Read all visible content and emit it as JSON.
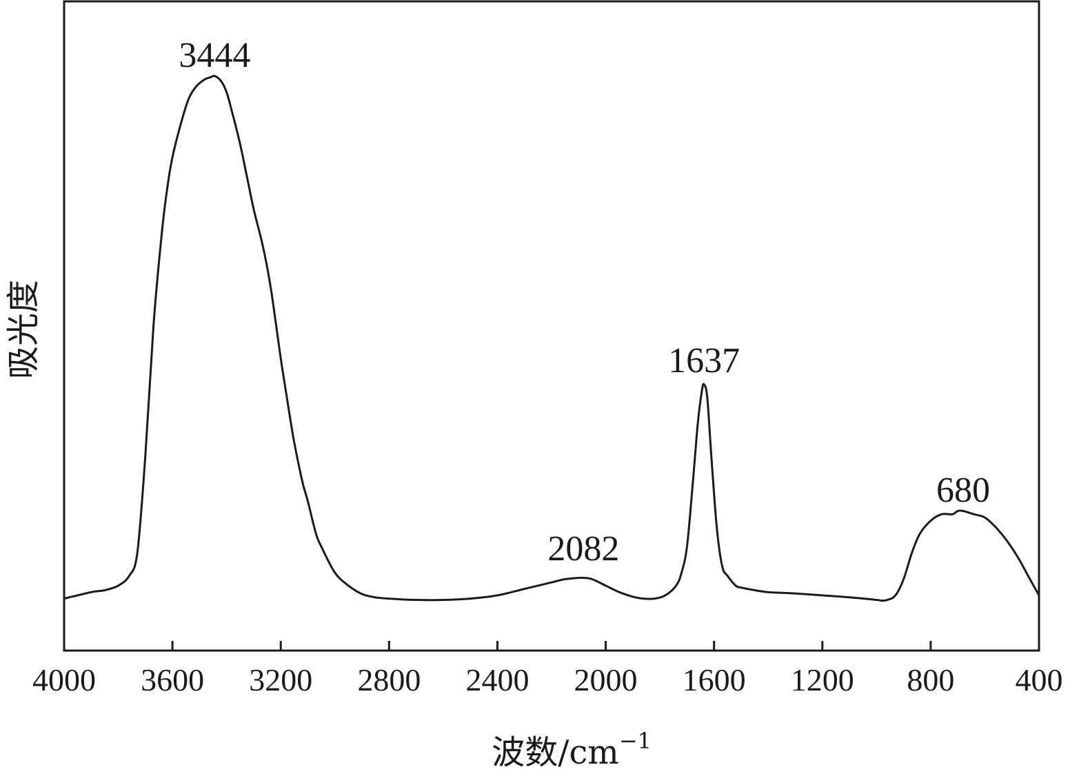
{
  "chart_data": {
    "type": "line",
    "xlabel": "波数/cm",
    "xlabel_superscript": "−1",
    "ylabel": "吸光度",
    "xlim": [
      4000,
      400
    ],
    "x_reversed": true,
    "ylim": [
      0,
      1
    ],
    "y_ticks_shown": false,
    "grid": false,
    "legend": "none",
    "line_color": "#1a1a1a",
    "x_ticks": [
      4000,
      3600,
      3200,
      2800,
      2400,
      2000,
      1600,
      1200,
      800,
      400
    ],
    "x_tick_labels": [
      "4000",
      "3600",
      "3200",
      "2800",
      "2400",
      "2000",
      "1600",
      "1200",
      "800",
      "400"
    ],
    "annotations": [
      {
        "text": "3444",
        "x": 3444,
        "y": 0.88
      },
      {
        "text": "2082",
        "x": 2082,
        "y": 0.12
      },
      {
        "text": "1637",
        "x": 1637,
        "y": 0.41
      },
      {
        "text": "680",
        "x": 680,
        "y": 0.21
      }
    ],
    "series": [
      {
        "x": [
          4000,
          3900,
          3850,
          3800,
          3760,
          3730,
          3700,
          3670,
          3640,
          3620,
          3600,
          3570,
          3540,
          3510,
          3480,
          3460,
          3444,
          3420,
          3400,
          3380,
          3350,
          3320,
          3300,
          3270,
          3250,
          3230,
          3200,
          3170,
          3150,
          3120,
          3100,
          3070,
          3050,
          3000,
          2950,
          2900,
          2850,
          2800,
          2700,
          2600,
          2500,
          2400,
          2300,
          2200,
          2150,
          2100,
          2082,
          2050,
          2000,
          1950,
          1900,
          1860,
          1820,
          1780,
          1740,
          1720,
          1700,
          1680,
          1660,
          1645,
          1637,
          1625,
          1610,
          1590,
          1570,
          1550,
          1520,
          1500,
          1450,
          1400,
          1300,
          1200,
          1100,
          1000,
          980,
          960,
          930,
          900,
          870,
          840,
          800,
          760,
          720,
          700,
          680,
          640,
          600,
          560,
          520,
          480,
          440,
          420,
          400
        ],
        "y": [
          0.08,
          0.09,
          0.093,
          0.1,
          0.115,
          0.15,
          0.3,
          0.5,
          0.64,
          0.71,
          0.76,
          0.81,
          0.85,
          0.87,
          0.88,
          0.883,
          0.885,
          0.877,
          0.86,
          0.83,
          0.78,
          0.72,
          0.68,
          0.63,
          0.59,
          0.54,
          0.45,
          0.37,
          0.32,
          0.26,
          0.23,
          0.18,
          0.16,
          0.12,
          0.1,
          0.087,
          0.082,
          0.08,
          0.078,
          0.078,
          0.08,
          0.085,
          0.095,
          0.105,
          0.11,
          0.112,
          0.112,
          0.11,
          0.1,
          0.09,
          0.083,
          0.08,
          0.08,
          0.085,
          0.1,
          0.12,
          0.16,
          0.25,
          0.35,
          0.4,
          0.41,
          0.39,
          0.3,
          0.19,
          0.13,
          0.115,
          0.1,
          0.097,
          0.093,
          0.09,
          0.088,
          0.085,
          0.082,
          0.078,
          0.077,
          0.078,
          0.085,
          0.11,
          0.15,
          0.18,
          0.2,
          0.21,
          0.21,
          0.215,
          0.215,
          0.21,
          0.205,
          0.19,
          0.17,
          0.145,
          0.115,
          0.1,
          0.085
        ]
      }
    ]
  }
}
